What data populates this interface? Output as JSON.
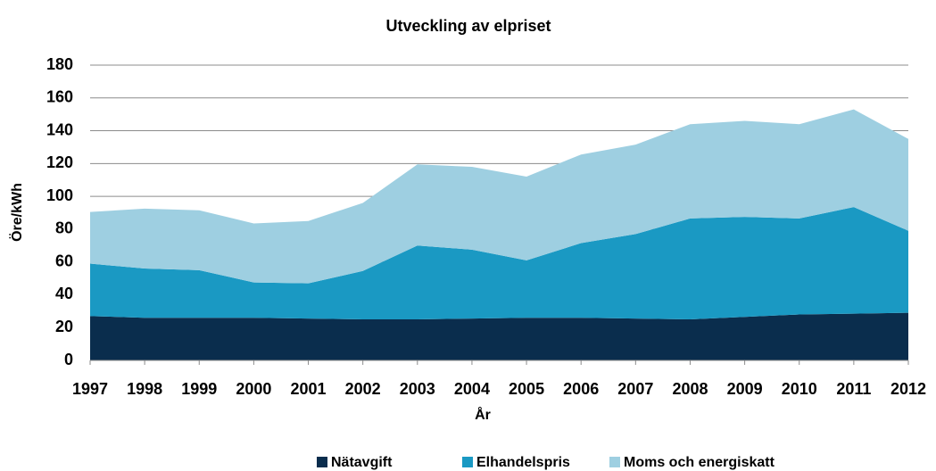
{
  "chart_data": {
    "type": "stacked_area",
    "title": "Utveckling av elpriset",
    "x": [
      1997,
      1998,
      1999,
      2000,
      2001,
      2002,
      2003,
      2004,
      2005,
      2006,
      2007,
      2008,
      2009,
      2010,
      2011,
      2012
    ],
    "series": [
      {
        "name": "Nätavgift",
        "color": "#0a2d4d",
        "values": [
          27,
          26,
          26,
          26,
          25.5,
          25,
          25,
          25.5,
          26,
          26,
          25.5,
          25,
          26.5,
          28,
          28.5,
          29
        ]
      },
      {
        "name": "Elhandelspris",
        "color": "#1a99c3",
        "values": [
          32,
          30,
          29,
          21.5,
          21.5,
          29.5,
          45,
          42,
          35,
          45.5,
          51.5,
          61.5,
          61,
          58.5,
          65,
          50
        ]
      },
      {
        "name": "Moms och energiskatt",
        "color": "#9ecfe1",
        "values": [
          31.5,
          36.5,
          36.5,
          36,
          38,
          41.5,
          49.5,
          50.5,
          51,
          54,
          54.5,
          57.5,
          58.5,
          57.5,
          59.5,
          56
        ]
      }
    ],
    "xlabel": "År",
    "ylabel": "Öre/kWh",
    "xlim": [
      1997,
      2012
    ],
    "xticks": [
      1997,
      1998,
      1999,
      2000,
      2001,
      2002,
      2003,
      2004,
      2005,
      2006,
      2007,
      2008,
      2009,
      2010,
      2011,
      2012
    ],
    "ylim": [
      0,
      180
    ],
    "yticks": [
      0,
      20,
      40,
      60,
      80,
      100,
      120,
      140,
      160,
      180
    ],
    "grid": true,
    "legend": "bottom"
  }
}
